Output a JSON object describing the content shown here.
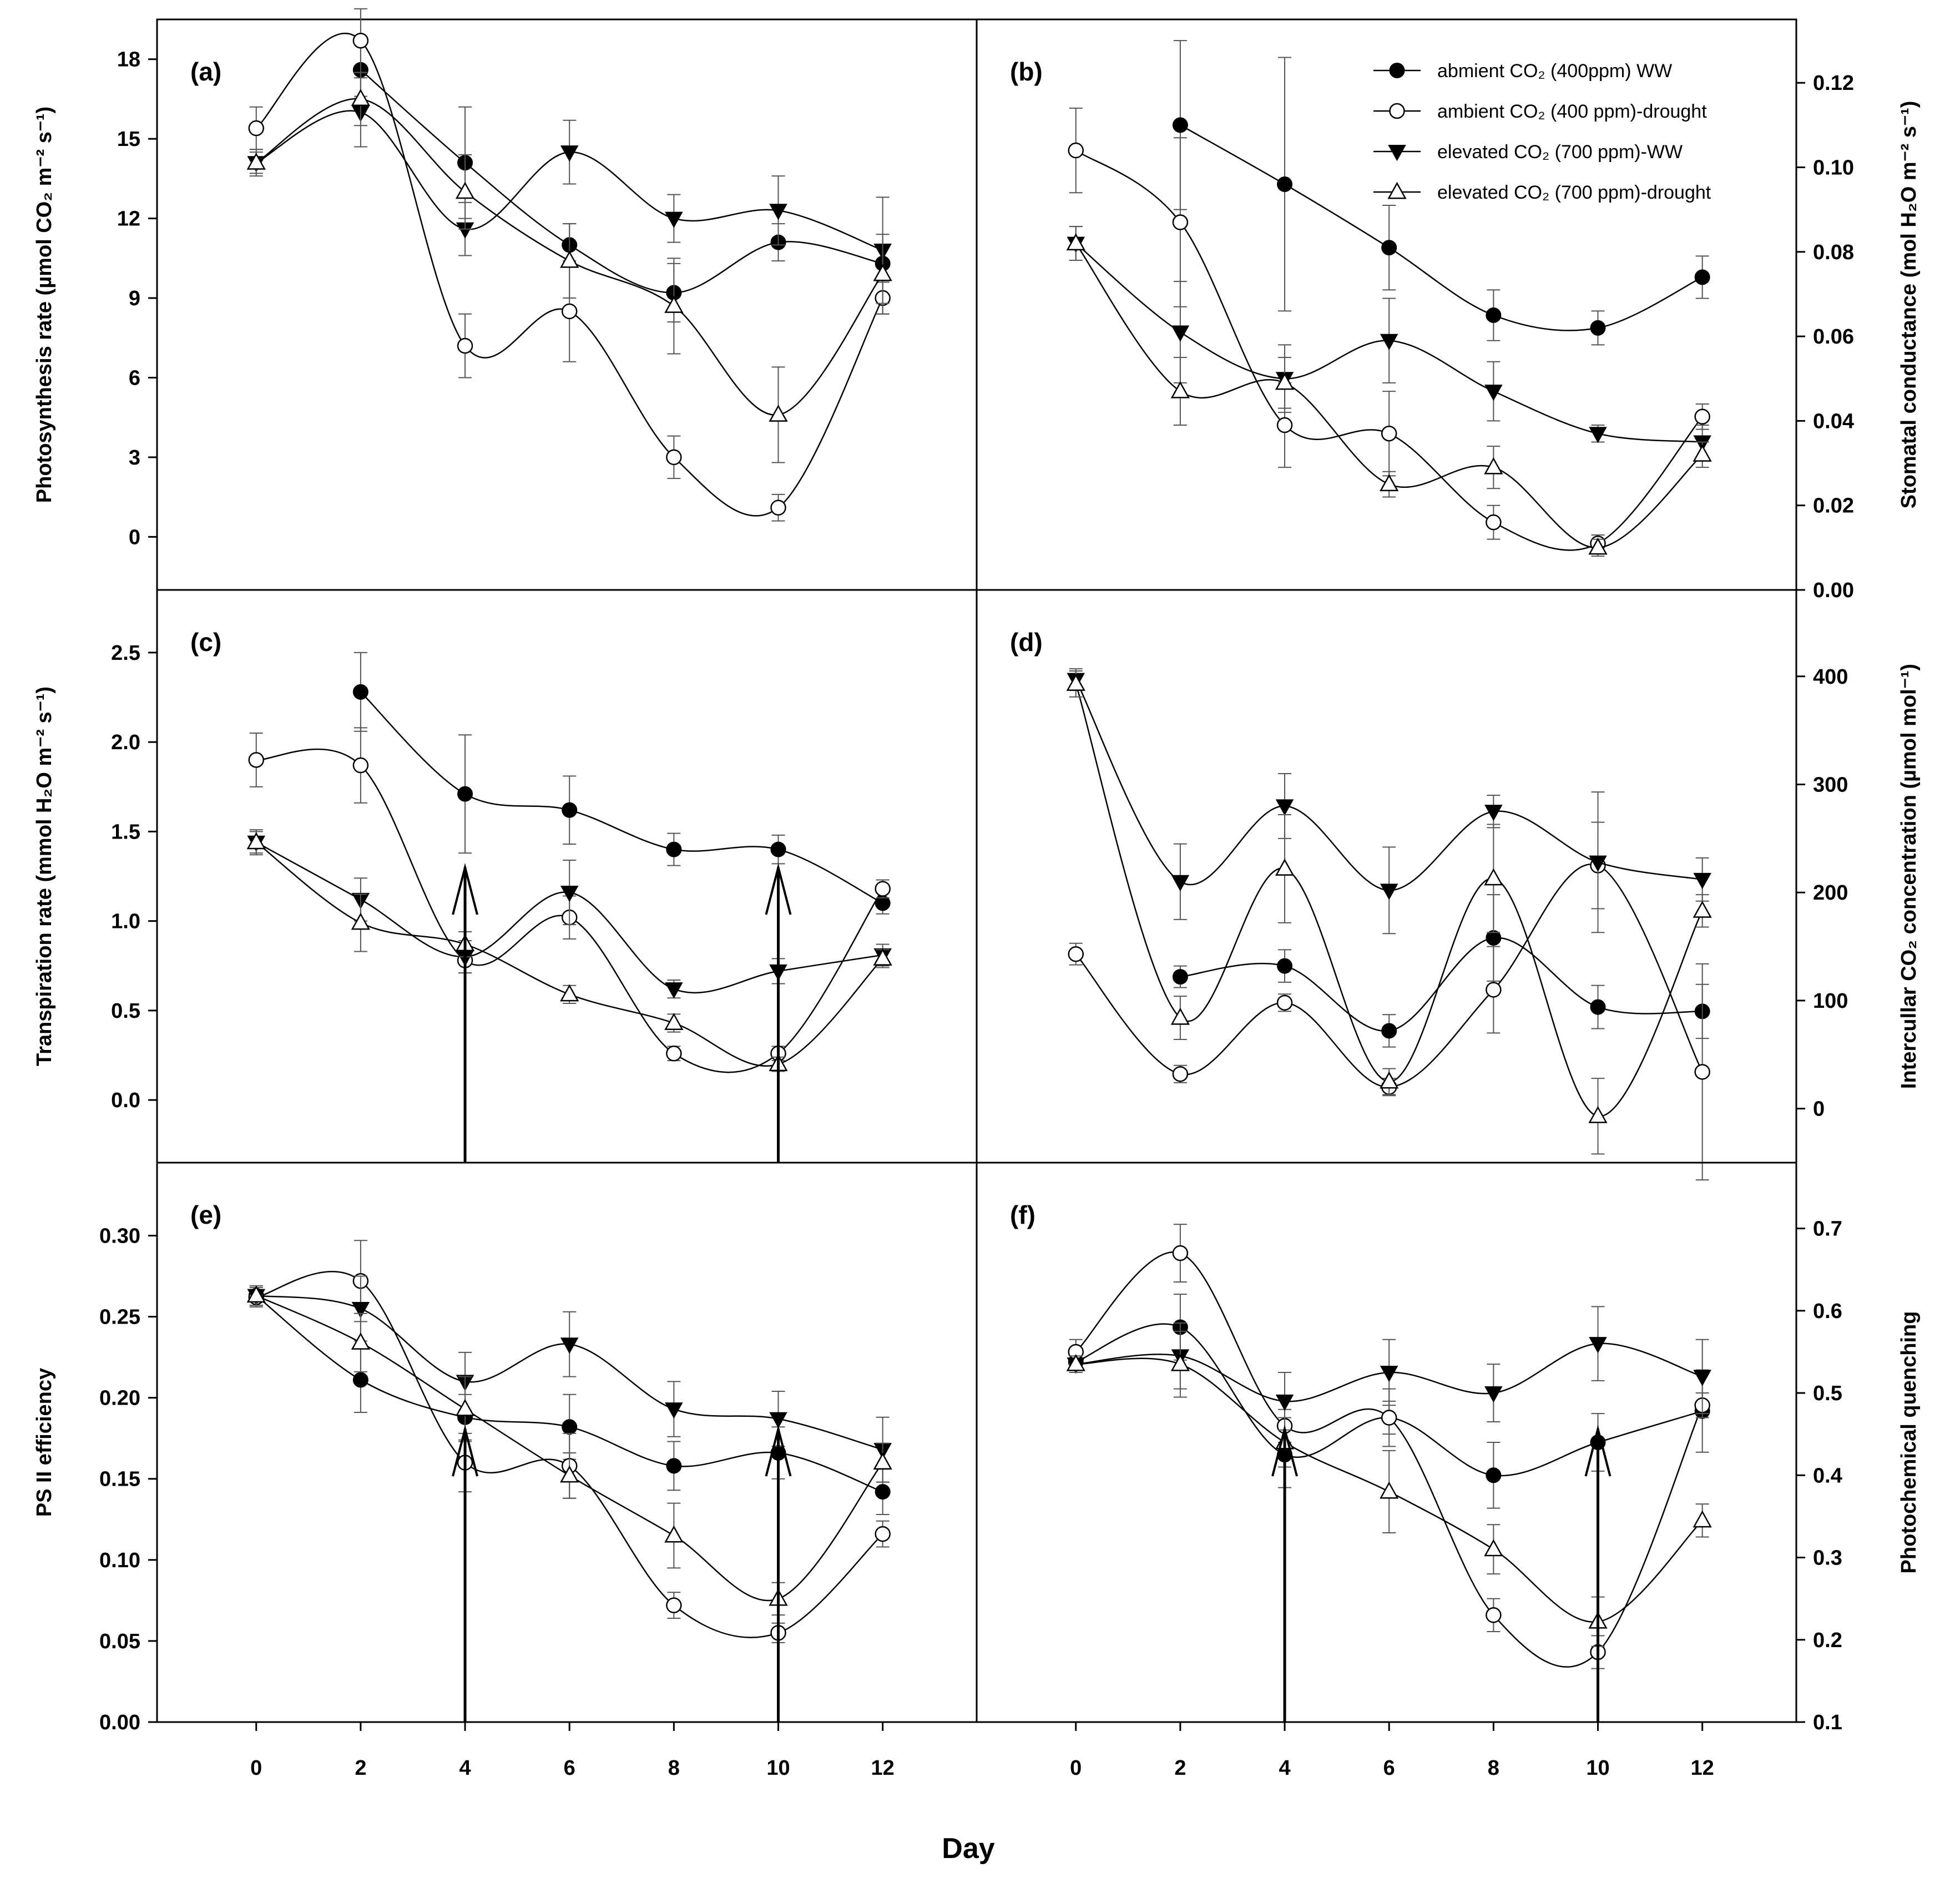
{
  "figure": {
    "xlabel": "Day"
  },
  "legend": [
    {
      "id": "s1",
      "text": "abmient CO₂ (400ppm) WW",
      "marker": "circle-filled"
    },
    {
      "id": "s2",
      "text": "ambient CO₂ (400 ppm)-drought",
      "marker": "circle-open"
    },
    {
      "id": "s3",
      "text": "elevated CO₂ (700 ppm)-WW",
      "marker": "triangle-down-filled"
    },
    {
      "id": "s4",
      "text": "elevated CO₂ (700 ppm)-drought",
      "marker": "triangle-up-open"
    }
  ],
  "chart_data": [
    {
      "id": "a",
      "type": "line",
      "panel_label": "(a)",
      "ylabel": "Photosynthesis rate (µmol CO₂ m⁻² s⁻¹)",
      "yaxis_side": "left",
      "x": [
        0,
        2,
        4,
        6,
        8,
        10,
        12
      ],
      "xlim": [
        -1.9,
        13.8
      ],
      "ylim": [
        -2,
        19.5
      ],
      "yticks": [
        0,
        3,
        6,
        9,
        12,
        15,
        18
      ],
      "yticklabels": [
        "0",
        "3",
        "6",
        "9",
        "12",
        "15",
        "18"
      ],
      "xticks_shown": false,
      "arrows_at": [],
      "series": [
        {
          "name": "abmient CO₂ (400ppm) WW",
          "values": [
            null,
            17.6,
            14.1,
            11.0,
            9.2,
            11.1,
            10.3
          ],
          "errors": [
            null,
            1.0,
            2.1,
            0.8,
            1.1,
            0.7,
            0.7
          ]
        },
        {
          "name": "ambient CO₂ (400 ppm)-drought",
          "values": [
            15.4,
            18.7,
            7.2,
            8.5,
            3.0,
            1.1,
            9.0
          ],
          "errors": [
            0.8,
            1.2,
            1.2,
            1.9,
            0.8,
            0.5,
            0.6
          ]
        },
        {
          "name": "elevated CO₂ (700 ppm)-WW",
          "values": [
            14.1,
            16.0,
            11.6,
            14.5,
            12.0,
            12.3,
            10.8
          ],
          "errors": [
            0.5,
            1.3,
            1.0,
            1.2,
            0.9,
            1.3,
            2.0
          ]
        },
        {
          "name": "elevated CO₂ (700 ppm)-drought",
          "values": [
            14.1,
            16.5,
            13.0,
            10.4,
            8.7,
            4.6,
            9.9
          ],
          "errors": [
            0.4,
            1.0,
            1.4,
            1.4,
            1.8,
            1.8,
            1.5
          ]
        }
      ]
    },
    {
      "id": "b",
      "type": "line",
      "panel_label": "(b)",
      "ylabel": "Stomatal conductance (mol H₂O m⁻² s⁻¹)",
      "yaxis_side": "right",
      "x": [
        0,
        2,
        4,
        6,
        8,
        10,
        12
      ],
      "xlim": [
        -1.9,
        13.8
      ],
      "ylim": [
        0.0,
        0.135
      ],
      "yticks": [
        0.0,
        0.02,
        0.04,
        0.06,
        0.08,
        0.1,
        0.12
      ],
      "yticklabels": [
        "0.00",
        "0.02",
        "0.04",
        "0.06",
        "0.08",
        "0.10",
        "0.12"
      ],
      "xticks_shown": false,
      "arrows_at": [],
      "series": [
        {
          "name": "abmient CO₂ (400ppm) WW",
          "values": [
            null,
            0.11,
            0.096,
            0.081,
            0.065,
            0.062,
            0.074
          ],
          "errors": [
            null,
            0.02,
            0.03,
            0.01,
            0.006,
            0.004,
            0.005
          ]
        },
        {
          "name": "ambient CO₂ (400 ppm)-drought",
          "values": [
            0.104,
            0.087,
            0.039,
            0.037,
            0.016,
            0.011,
            0.041
          ],
          "errors": [
            0.01,
            0.02,
            0.01,
            0.01,
            0.004,
            0.002,
            0.003
          ]
        },
        {
          "name": "elevated CO₂ (700 ppm)-WW",
          "values": [
            0.082,
            0.061,
            0.05,
            0.059,
            0.047,
            0.037,
            0.035
          ],
          "errors": [
            0.004,
            0.012,
            0.008,
            0.01,
            0.007,
            0.002,
            0.004
          ]
        },
        {
          "name": "elevated CO₂ (700 ppm)-drought",
          "values": [
            0.082,
            0.047,
            0.049,
            0.025,
            0.029,
            0.01,
            0.032
          ],
          "errors": [
            0.004,
            0.008,
            0.006,
            0.003,
            0.005,
            0.002,
            0.003
          ]
        }
      ]
    },
    {
      "id": "c",
      "type": "line",
      "panel_label": "(c)",
      "ylabel": "Transpiration rate (mmol H₂O m⁻² s⁻¹)",
      "yaxis_side": "left",
      "x": [
        0,
        2,
        4,
        6,
        8,
        10,
        12
      ],
      "xlim": [
        -1.9,
        13.8
      ],
      "ylim": [
        -0.35,
        2.85
      ],
      "yticks": [
        0.0,
        0.5,
        1.0,
        1.5,
        2.0,
        2.5
      ],
      "yticklabels": [
        "0.0",
        "0.5",
        "1.0",
        "1.5",
        "2.0",
        "2.5"
      ],
      "xticks_shown": false,
      "arrows_at": [
        4,
        10
      ],
      "series": [
        {
          "name": "abmient CO₂ (400ppm) WW",
          "values": [
            null,
            2.28,
            1.71,
            1.62,
            1.4,
            1.4,
            1.1
          ],
          "errors": [
            null,
            0.22,
            0.33,
            0.19,
            0.09,
            0.08,
            0.06
          ]
        },
        {
          "name": "ambient CO₂ (400 ppm)-drought",
          "values": [
            1.9,
            1.87,
            0.78,
            1.02,
            0.26,
            0.26,
            1.18
          ],
          "errors": [
            0.15,
            0.21,
            0.07,
            0.12,
            0.04,
            0.04,
            0.05
          ]
        },
        {
          "name": "elevated CO₂ (700 ppm)-WW",
          "values": [
            1.44,
            1.12,
            0.8,
            1.16,
            0.62,
            0.72,
            0.81
          ],
          "errors": [
            0.06,
            0.12,
            0.09,
            0.18,
            0.05,
            0.07,
            0.06
          ]
        },
        {
          "name": "elevated CO₂ (700 ppm)-drought",
          "values": [
            1.44,
            0.99,
            0.87,
            0.59,
            0.43,
            0.2,
            0.79
          ],
          "errors": [
            0.07,
            0.16,
            0.07,
            0.05,
            0.05,
            0.04,
            0.05
          ]
        }
      ]
    },
    {
      "id": "d",
      "type": "line",
      "panel_label": "(d)",
      "ylabel": "Intercullar CO₂ concentration (µmol mol⁻¹)",
      "yaxis_side": "right",
      "x": [
        0,
        2,
        4,
        6,
        8,
        10,
        12
      ],
      "xlim": [
        -1.9,
        13.8
      ],
      "ylim": [
        -50,
        480
      ],
      "yticks": [
        0,
        100,
        200,
        300,
        400
      ],
      "yticklabels": [
        "0",
        "100",
        "200",
        "300",
        "400"
      ],
      "xticks_shown": false,
      "arrows_at": [],
      "series": [
        {
          "name": "abmient CO₂ (400ppm) WW",
          "values": [
            null,
            122,
            132,
            72,
            158,
            94,
            90
          ],
          "errors": [
            null,
            10,
            15,
            15,
            40,
            20,
            25
          ]
        },
        {
          "name": "ambient CO₂ (400 ppm)-drought",
          "values": [
            143,
            32,
            98,
            20,
            110,
            225,
            34
          ],
          "errors": [
            10,
            8,
            8,
            8,
            40,
            40,
            100
          ]
        },
        {
          "name": "elevated CO₂ (700 ppm)-WW",
          "values": [
            397,
            210,
            280,
            202,
            275,
            228,
            212
          ],
          "errors": [
            10,
            35,
            30,
            40,
            15,
            65,
            20
          ]
        },
        {
          "name": "elevated CO₂ (700 ppm)-drought",
          "values": [
            393,
            84,
            222,
            25,
            213,
            -7,
            183
          ],
          "errors": [
            12,
            20,
            50,
            12,
            50,
            35,
            15
          ]
        }
      ]
    },
    {
      "id": "e",
      "type": "line",
      "panel_label": "(e)",
      "ylabel": "PS II efficiency",
      "yaxis_side": "left",
      "x": [
        0,
        2,
        4,
        6,
        8,
        10,
        12
      ],
      "xlim": [
        -1.9,
        13.8
      ],
      "ylim": [
        0.0,
        0.345
      ],
      "yticks": [
        0.0,
        0.05,
        0.1,
        0.15,
        0.2,
        0.25,
        0.3
      ],
      "yticklabels": [
        "0.00",
        "0.05",
        "0.10",
        "0.15",
        "0.20",
        "0.25",
        "0.30"
      ],
      "xticks_shown": true,
      "arrows_at": [
        4,
        10
      ],
      "series": [
        {
          "name": "abmient CO₂ (400ppm) WW",
          "values": [
            0.263,
            0.211,
            0.188,
            0.182,
            0.158,
            0.166,
            0.142
          ],
          "errors": [
            0.006,
            0.02,
            0.014,
            0.02,
            0.015,
            0.016,
            0.014
          ]
        },
        {
          "name": "ambient CO₂ (400 ppm)-drought",
          "values": [
            0.262,
            0.272,
            0.16,
            0.158,
            0.072,
            0.055,
            0.116
          ],
          "errors": [
            0.006,
            0.025,
            0.018,
            0.02,
            0.008,
            0.006,
            0.008
          ]
        },
        {
          "name": "elevated CO₂ (700 ppm)-WW",
          "values": [
            0.263,
            0.255,
            0.21,
            0.233,
            0.193,
            0.187,
            0.168
          ],
          "errors": [
            0.006,
            0.02,
            0.018,
            0.02,
            0.017,
            0.017,
            0.02
          ]
        },
        {
          "name": "elevated CO₂ (700 ppm)-drought",
          "values": [
            0.263,
            0.234,
            0.193,
            0.152,
            0.115,
            0.076,
            0.16
          ],
          "errors": [
            0.006,
            0.018,
            0.02,
            0.014,
            0.02,
            0.01,
            0.012
          ]
        }
      ]
    },
    {
      "id": "f",
      "type": "line",
      "panel_label": "(f)",
      "ylabel": "Photochemical quenching",
      "yaxis_side": "right",
      "x": [
        0,
        2,
        4,
        6,
        8,
        10,
        12
      ],
      "xlim": [
        -1.9,
        13.8
      ],
      "ylim": [
        0.1,
        0.78
      ],
      "yticks": [
        0.1,
        0.2,
        0.3,
        0.4,
        0.5,
        0.6,
        0.7
      ],
      "yticklabels": [
        "0.1",
        "0.2",
        "0.3",
        "0.4",
        "0.5",
        "0.6",
        "0.7"
      ],
      "xticks_shown": true,
      "arrows_at": [
        4,
        10
      ],
      "series": [
        {
          "name": "abmient CO₂ (400ppm) WW",
          "values": [
            0.538,
            0.58,
            0.425,
            0.47,
            0.4,
            0.44,
            0.478
          ],
          "errors": [
            0.01,
            0.04,
            0.04,
            0.035,
            0.04,
            0.035,
            0.05
          ]
        },
        {
          "name": "ambient CO₂ (400 ppm)-drought",
          "values": [
            0.55,
            0.67,
            0.46,
            0.47,
            0.23,
            0.185,
            0.485
          ],
          "errors": [
            0.015,
            0.035,
            0.02,
            0.02,
            0.02,
            0.02,
            0.015
          ]
        },
        {
          "name": "elevated CO₂ (700 ppm)-WW",
          "values": [
            0.535,
            0.545,
            0.49,
            0.525,
            0.5,
            0.56,
            0.52
          ],
          "errors": [
            0.01,
            0.04,
            0.035,
            0.04,
            0.035,
            0.045,
            0.045
          ]
        },
        {
          "name": "elevated CO₂ (700 ppm)-drought",
          "values": [
            0.535,
            0.535,
            0.44,
            0.38,
            0.31,
            0.222,
            0.345
          ],
          "errors": [
            0.01,
            0.04,
            0.03,
            0.05,
            0.03,
            0.03,
            0.02
          ]
        }
      ]
    }
  ]
}
